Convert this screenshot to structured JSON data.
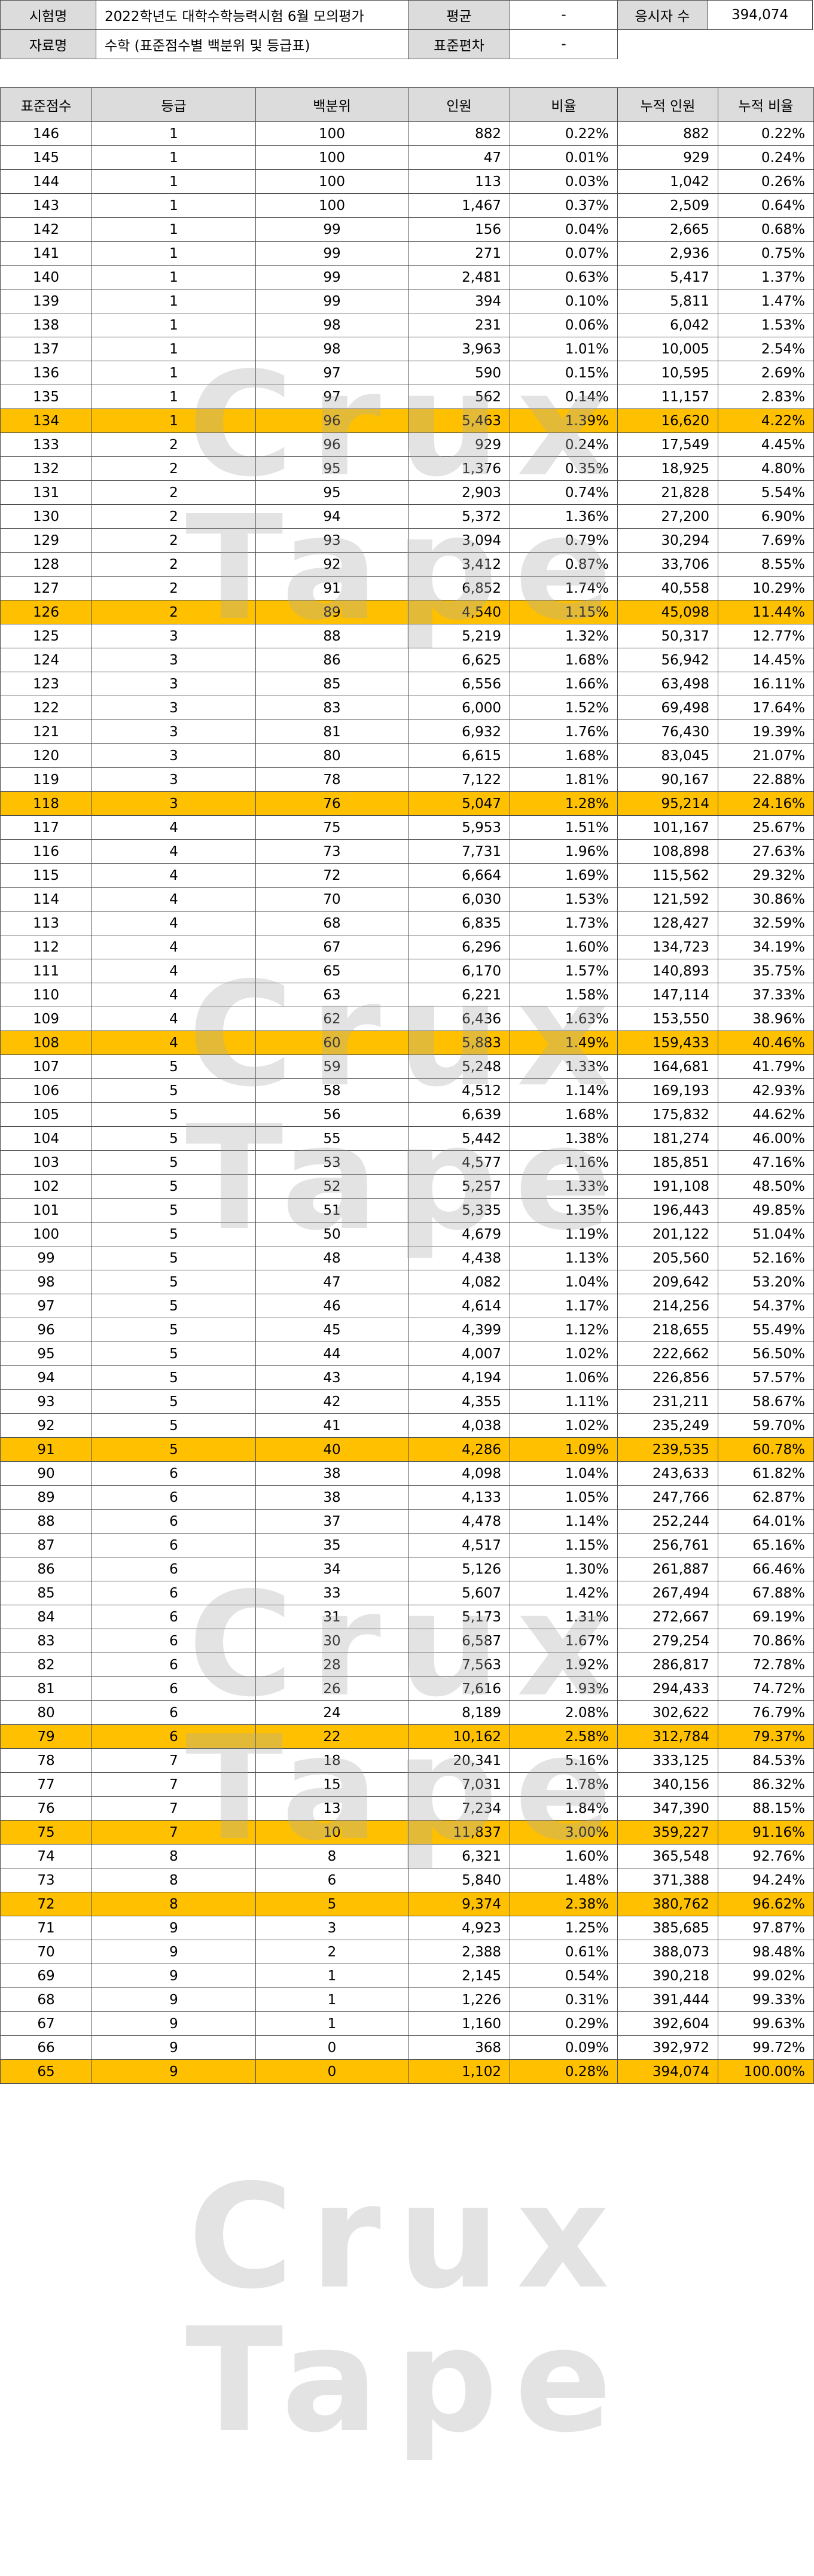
{
  "info": {
    "exam_label": "시험명",
    "exam_name": "2022학년도 대학수학능력시험 6월 모의평가",
    "mean_label": "평균",
    "mean_value": "-",
    "examinees_label": "응시자 수",
    "examinees_value": "394,074",
    "data_label": "자료명",
    "data_name": "수학 (표준점수별 백분위 및 등급표)",
    "sd_label": "표준편차",
    "sd_value": "-"
  },
  "columns": [
    "표준점수",
    "등급",
    "백분위",
    "인원",
    "비율",
    "누적 인원",
    "누적 비율"
  ],
  "rows": [
    [
      "146",
      "1",
      "100",
      "882",
      "0.22%",
      "882",
      "0.22%",
      false
    ],
    [
      "145",
      "1",
      "100",
      "47",
      "0.01%",
      "929",
      "0.24%",
      false
    ],
    [
      "144",
      "1",
      "100",
      "113",
      "0.03%",
      "1,042",
      "0.26%",
      false
    ],
    [
      "143",
      "1",
      "100",
      "1,467",
      "0.37%",
      "2,509",
      "0.64%",
      false
    ],
    [
      "142",
      "1",
      "99",
      "156",
      "0.04%",
      "2,665",
      "0.68%",
      false
    ],
    [
      "141",
      "1",
      "99",
      "271",
      "0.07%",
      "2,936",
      "0.75%",
      false
    ],
    [
      "140",
      "1",
      "99",
      "2,481",
      "0.63%",
      "5,417",
      "1.37%",
      false
    ],
    [
      "139",
      "1",
      "99",
      "394",
      "0.10%",
      "5,811",
      "1.47%",
      false
    ],
    [
      "138",
      "1",
      "98",
      "231",
      "0.06%",
      "6,042",
      "1.53%",
      false
    ],
    [
      "137",
      "1",
      "98",
      "3,963",
      "1.01%",
      "10,005",
      "2.54%",
      false
    ],
    [
      "136",
      "1",
      "97",
      "590",
      "0.15%",
      "10,595",
      "2.69%",
      false
    ],
    [
      "135",
      "1",
      "97",
      "562",
      "0.14%",
      "11,157",
      "2.83%",
      false
    ],
    [
      "134",
      "1",
      "96",
      "5,463",
      "1.39%",
      "16,620",
      "4.22%",
      true
    ],
    [
      "133",
      "2",
      "96",
      "929",
      "0.24%",
      "17,549",
      "4.45%",
      false
    ],
    [
      "132",
      "2",
      "95",
      "1,376",
      "0.35%",
      "18,925",
      "4.80%",
      false
    ],
    [
      "131",
      "2",
      "95",
      "2,903",
      "0.74%",
      "21,828",
      "5.54%",
      false
    ],
    [
      "130",
      "2",
      "94",
      "5,372",
      "1.36%",
      "27,200",
      "6.90%",
      false
    ],
    [
      "129",
      "2",
      "93",
      "3,094",
      "0.79%",
      "30,294",
      "7.69%",
      false
    ],
    [
      "128",
      "2",
      "92",
      "3,412",
      "0.87%",
      "33,706",
      "8.55%",
      false
    ],
    [
      "127",
      "2",
      "91",
      "6,852",
      "1.74%",
      "40,558",
      "10.29%",
      false
    ],
    [
      "126",
      "2",
      "89",
      "4,540",
      "1.15%",
      "45,098",
      "11.44%",
      true
    ],
    [
      "125",
      "3",
      "88",
      "5,219",
      "1.32%",
      "50,317",
      "12.77%",
      false
    ],
    [
      "124",
      "3",
      "86",
      "6,625",
      "1.68%",
      "56,942",
      "14.45%",
      false
    ],
    [
      "123",
      "3",
      "85",
      "6,556",
      "1.66%",
      "63,498",
      "16.11%",
      false
    ],
    [
      "122",
      "3",
      "83",
      "6,000",
      "1.52%",
      "69,498",
      "17.64%",
      false
    ],
    [
      "121",
      "3",
      "81",
      "6,932",
      "1.76%",
      "76,430",
      "19.39%",
      false
    ],
    [
      "120",
      "3",
      "80",
      "6,615",
      "1.68%",
      "83,045",
      "21.07%",
      false
    ],
    [
      "119",
      "3",
      "78",
      "7,122",
      "1.81%",
      "90,167",
      "22.88%",
      false
    ],
    [
      "118",
      "3",
      "76",
      "5,047",
      "1.28%",
      "95,214",
      "24.16%",
      true
    ],
    [
      "117",
      "4",
      "75",
      "5,953",
      "1.51%",
      "101,167",
      "25.67%",
      false
    ],
    [
      "116",
      "4",
      "73",
      "7,731",
      "1.96%",
      "108,898",
      "27.63%",
      false
    ],
    [
      "115",
      "4",
      "72",
      "6,664",
      "1.69%",
      "115,562",
      "29.32%",
      false
    ],
    [
      "114",
      "4",
      "70",
      "6,030",
      "1.53%",
      "121,592",
      "30.86%",
      false
    ],
    [
      "113",
      "4",
      "68",
      "6,835",
      "1.73%",
      "128,427",
      "32.59%",
      false
    ],
    [
      "112",
      "4",
      "67",
      "6,296",
      "1.60%",
      "134,723",
      "34.19%",
      false
    ],
    [
      "111",
      "4",
      "65",
      "6,170",
      "1.57%",
      "140,893",
      "35.75%",
      false
    ],
    [
      "110",
      "4",
      "63",
      "6,221",
      "1.58%",
      "147,114",
      "37.33%",
      false
    ],
    [
      "109",
      "4",
      "62",
      "6,436",
      "1.63%",
      "153,550",
      "38.96%",
      false
    ],
    [
      "108",
      "4",
      "60",
      "5,883",
      "1.49%",
      "159,433",
      "40.46%",
      true
    ],
    [
      "107",
      "5",
      "59",
      "5,248",
      "1.33%",
      "164,681",
      "41.79%",
      false
    ],
    [
      "106",
      "5",
      "58",
      "4,512",
      "1.14%",
      "169,193",
      "42.93%",
      false
    ],
    [
      "105",
      "5",
      "56",
      "6,639",
      "1.68%",
      "175,832",
      "44.62%",
      false
    ],
    [
      "104",
      "5",
      "55",
      "5,442",
      "1.38%",
      "181,274",
      "46.00%",
      false
    ],
    [
      "103",
      "5",
      "53",
      "4,577",
      "1.16%",
      "185,851",
      "47.16%",
      false
    ],
    [
      "102",
      "5",
      "52",
      "5,257",
      "1.33%",
      "191,108",
      "48.50%",
      false
    ],
    [
      "101",
      "5",
      "51",
      "5,335",
      "1.35%",
      "196,443",
      "49.85%",
      false
    ],
    [
      "100",
      "5",
      "50",
      "4,679",
      "1.19%",
      "201,122",
      "51.04%",
      false
    ],
    [
      "99",
      "5",
      "48",
      "4,438",
      "1.13%",
      "205,560",
      "52.16%",
      false
    ],
    [
      "98",
      "5",
      "47",
      "4,082",
      "1.04%",
      "209,642",
      "53.20%",
      false
    ],
    [
      "97",
      "5",
      "46",
      "4,614",
      "1.17%",
      "214,256",
      "54.37%",
      false
    ],
    [
      "96",
      "5",
      "45",
      "4,399",
      "1.12%",
      "218,655",
      "55.49%",
      false
    ],
    [
      "95",
      "5",
      "44",
      "4,007",
      "1.02%",
      "222,662",
      "56.50%",
      false
    ],
    [
      "94",
      "5",
      "43",
      "4,194",
      "1.06%",
      "226,856",
      "57.57%",
      false
    ],
    [
      "93",
      "5",
      "42",
      "4,355",
      "1.11%",
      "231,211",
      "58.67%",
      false
    ],
    [
      "92",
      "5",
      "41",
      "4,038",
      "1.02%",
      "235,249",
      "59.70%",
      false
    ],
    [
      "91",
      "5",
      "40",
      "4,286",
      "1.09%",
      "239,535",
      "60.78%",
      true
    ],
    [
      "90",
      "6",
      "38",
      "4,098",
      "1.04%",
      "243,633",
      "61.82%",
      false
    ],
    [
      "89",
      "6",
      "38",
      "4,133",
      "1.05%",
      "247,766",
      "62.87%",
      false
    ],
    [
      "88",
      "6",
      "37",
      "4,478",
      "1.14%",
      "252,244",
      "64.01%",
      false
    ],
    [
      "87",
      "6",
      "35",
      "4,517",
      "1.15%",
      "256,761",
      "65.16%",
      false
    ],
    [
      "86",
      "6",
      "34",
      "5,126",
      "1.30%",
      "261,887",
      "66.46%",
      false
    ],
    [
      "85",
      "6",
      "33",
      "5,607",
      "1.42%",
      "267,494",
      "67.88%",
      false
    ],
    [
      "84",
      "6",
      "31",
      "5,173",
      "1.31%",
      "272,667",
      "69.19%",
      false
    ],
    [
      "83",
      "6",
      "30",
      "6,587",
      "1.67%",
      "279,254",
      "70.86%",
      false
    ],
    [
      "82",
      "6",
      "28",
      "7,563",
      "1.92%",
      "286,817",
      "72.78%",
      false
    ],
    [
      "81",
      "6",
      "26",
      "7,616",
      "1.93%",
      "294,433",
      "74.72%",
      false
    ],
    [
      "80",
      "6",
      "24",
      "8,189",
      "2.08%",
      "302,622",
      "76.79%",
      false
    ],
    [
      "79",
      "6",
      "22",
      "10,162",
      "2.58%",
      "312,784",
      "79.37%",
      true
    ],
    [
      "78",
      "7",
      "18",
      "20,341",
      "5.16%",
      "333,125",
      "84.53%",
      false
    ],
    [
      "77",
      "7",
      "15",
      "7,031",
      "1.78%",
      "340,156",
      "86.32%",
      false
    ],
    [
      "76",
      "7",
      "13",
      "7,234",
      "1.84%",
      "347,390",
      "88.15%",
      false
    ],
    [
      "75",
      "7",
      "10",
      "11,837",
      "3.00%",
      "359,227",
      "91.16%",
      true
    ],
    [
      "74",
      "8",
      "8",
      "6,321",
      "1.60%",
      "365,548",
      "92.76%",
      false
    ],
    [
      "73",
      "8",
      "6",
      "5,840",
      "1.48%",
      "371,388",
      "94.24%",
      false
    ],
    [
      "72",
      "8",
      "5",
      "9,374",
      "2.38%",
      "380,762",
      "96.62%",
      true
    ],
    [
      "71",
      "9",
      "3",
      "4,923",
      "1.25%",
      "385,685",
      "97.87%",
      false
    ],
    [
      "70",
      "9",
      "2",
      "2,388",
      "0.61%",
      "388,073",
      "98.48%",
      false
    ],
    [
      "69",
      "9",
      "1",
      "2,145",
      "0.54%",
      "390,218",
      "99.02%",
      false
    ],
    [
      "68",
      "9",
      "1",
      "1,226",
      "0.31%",
      "391,444",
      "99.33%",
      false
    ],
    [
      "67",
      "9",
      "1",
      "1,160",
      "0.29%",
      "392,604",
      "99.63%",
      false
    ],
    [
      "66",
      "9",
      "0",
      "368",
      "0.09%",
      "392,972",
      "99.72%",
      false
    ],
    [
      "65",
      "9",
      "0",
      "1,102",
      "0.28%",
      "394,074",
      "100.00%",
      true
    ]
  ],
  "watermark": "Crux Tape",
  "colors": {
    "header_bg": "#dcdcdc",
    "highlight_bg": "#ffc000",
    "border": "#4d4d4d"
  }
}
